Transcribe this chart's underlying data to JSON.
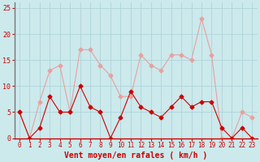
{
  "x": [
    0,
    1,
    2,
    3,
    4,
    5,
    6,
    7,
    8,
    9,
    10,
    11,
    12,
    13,
    14,
    15,
    16,
    17,
    18,
    19,
    20,
    21,
    22,
    23
  ],
  "vent_moyen": [
    5,
    0,
    2,
    8,
    5,
    5,
    10,
    6,
    5,
    0,
    4,
    9,
    6,
    5,
    4,
    6,
    8,
    6,
    7,
    7,
    2,
    0,
    2,
    0
  ],
  "rafales": [
    5,
    0,
    7,
    13,
    14,
    5,
    17,
    17,
    14,
    12,
    8,
    8,
    16,
    14,
    13,
    16,
    16,
    15,
    23,
    16,
    0,
    0,
    5,
    4
  ],
  "bg_color": "#cce9ec",
  "grid_color": "#aed4d8",
  "line_color_moyen": "#cc0000",
  "line_color_rafales": "#e8a0a0",
  "marker_color_moyen": "#cc0000",
  "marker_color_rafales": "#e8a0a0",
  "xlabel": "Vent moyen/en rafales ( km/h )",
  "xlabel_color": "#cc0000",
  "tick_color": "#cc0000",
  "ylim": [
    0,
    26
  ],
  "xlim": [
    -0.5,
    23.5
  ],
  "yticks": [
    0,
    5,
    10,
    15,
    20,
    25
  ],
  "xticks": [
    0,
    1,
    2,
    3,
    4,
    5,
    6,
    7,
    8,
    9,
    10,
    11,
    12,
    13,
    14,
    15,
    16,
    17,
    18,
    19,
    20,
    21,
    22,
    23
  ],
  "spine_color": "#cc0000",
  "left_spine_color": "#777777"
}
